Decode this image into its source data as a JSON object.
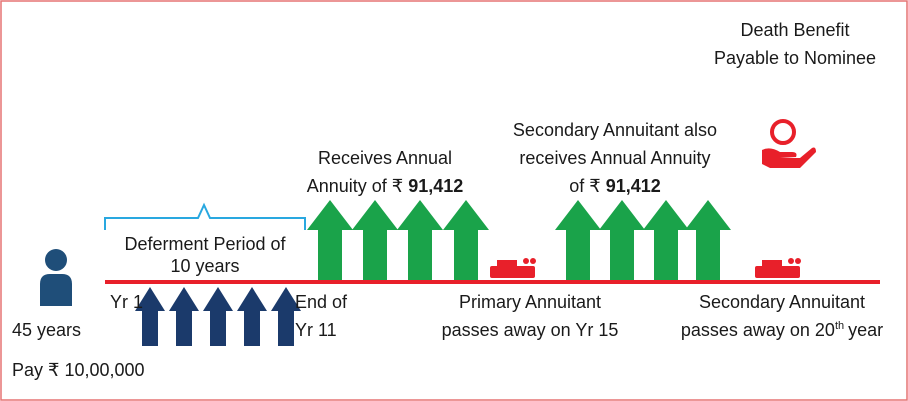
{
  "death_benefit": {
    "lines": [
      "Death Benefit",
      "Payable to Nominee"
    ]
  },
  "primary_annuity": {
    "line1": "Receives Annual",
    "prefix": "Annuity of ₹",
    "amount": "91,412"
  },
  "secondary_annuity": {
    "line1": "Secondary Annuitant also",
    "line2": "receives Annual Annuity",
    "prefix": "of ₹",
    "amount": "91,412"
  },
  "deferment": {
    "lines": [
      "Deferment Period of",
      "10 years"
    ],
    "start": "Yr 1",
    "end": [
      "End of",
      "Yr 11"
    ]
  },
  "person": {
    "age": "45 years",
    "payment": "Pay ₹ 10,00,000"
  },
  "primary_death": {
    "lines": [
      "Primary Annuitant",
      "passes away on Yr 15"
    ]
  },
  "secondary_death": {
    "line1": "Secondary Annuitant",
    "line2_before": "passes away on 20",
    "line2_sup": "th",
    "line2_after": "year"
  }
}
